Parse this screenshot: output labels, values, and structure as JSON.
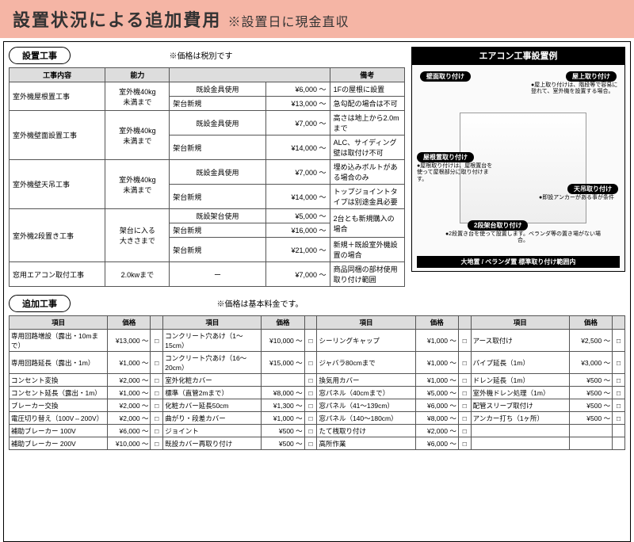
{
  "banner": {
    "title": "設置状況による追加費用",
    "sub": "※設置日に現金直収"
  },
  "section1": {
    "label": "設置工事",
    "note": "※価格は税別です"
  },
  "table1": {
    "headers": [
      "工事内容",
      "能力",
      "",
      "",
      "備考"
    ],
    "rows": [
      {
        "name": "室外機屋根置工事",
        "cap": "室外機40kg\n未満まで",
        "a": "既設金具使用",
        "p1": "¥6,000 ～",
        "r1": "1Fの屋根に設置",
        "b": "架台新規",
        "p2": "¥13,000 ～",
        "r2": "急勾配の場合は不可"
      },
      {
        "name": "室外機壁面設置工事",
        "cap": "室外機40kg\n未満まで",
        "a": "既設金具使用",
        "p1": "¥7,000 ～",
        "r1": "高さは地上から2.0mまで",
        "b": "架台新規",
        "p2": "¥14,000 ～",
        "r2": "ALC、サイディング壁は取付け不可"
      },
      {
        "name": "室外機壁天吊工事",
        "cap": "室外機40kg\n未満まで",
        "a": "既設金具使用",
        "p1": "¥7,000 ～",
        "r1": "埋め込みボルトがある場合のみ",
        "b": "架台新規",
        "p2": "¥14,000 ～",
        "r2": "トップジョイントタイプは別途金具必要"
      },
      {
        "name": "室外機2段置き工事",
        "cap": "架台に入る\n大きさまで",
        "a": "既設架台使用",
        "p1": "¥5,000 ～",
        "r1": "2台とも新規購入の場合",
        "b": "架台新規",
        "p2": "¥16,000 ～",
        "r2": "",
        "c": "架台新規",
        "p3": "¥21,000 ～",
        "r3": "新規＋既設室外機設置の場合"
      },
      {
        "name": "窓用エアコン取付工事",
        "cap": "2.0kwまで",
        "a": "ー",
        "p1": "¥7,000 ～",
        "r1": "商品同梱の部材使用取り付け範囲"
      }
    ]
  },
  "example": {
    "header": "エアコン工事設置例",
    "labels": {
      "wall": "壁面取り付け",
      "roof_top": "屋上取り付け",
      "roof": "屋根置取り付け",
      "ceiling": "天吊取り付け",
      "two_stage": "2段架台取り付け",
      "ground": "大地置 / ベランダ置 標準取り付け範囲内"
    },
    "notes": {
      "roof_top": "●屋上取り付けは、階段等で容易に登れて、室外機を設置する場合。",
      "roof": "●屋根取り付けは、屋根置台を使って屋根部分に取り付けます。",
      "ceiling": "●即設アンカーがある事が条件",
      "two_stage": "●2段置き台を使って設置します。ベランダ等の置き場がない場合。"
    }
  },
  "section2": {
    "label": "追加工事",
    "note": "※価格は基本料金です。"
  },
  "table2": {
    "headers": [
      "項目",
      "価格",
      "",
      "項目",
      "価格",
      "",
      "項目",
      "価格",
      "",
      "項目",
      "価格",
      ""
    ],
    "rows": [
      [
        "専用回路増設（露出・10mまで）",
        "¥13,000 ～",
        "コンクリート穴あけ（1～15cm）",
        "¥10,000 ～",
        "シーリングキャップ",
        "¥1,000 ～",
        "アース取付け",
        "¥2,500 ～"
      ],
      [
        "専用回路延長（露出・1m）",
        "¥1,000 ～",
        "コンクリート穴あけ（16～20cm）",
        "¥15,000 ～",
        "ジャバラ80cmまで",
        "¥1,000 ～",
        "パイプ延長（1m）",
        "¥3,000 ～"
      ],
      [
        "コンセント変換",
        "¥2,000 ～",
        "室外化粧カバー",
        "",
        "換気用カバー",
        "¥1,000 ～",
        "ドレン延長（1m）",
        "¥500 ～"
      ],
      [
        "コンセント延長（露出・1m）",
        "¥1,000 ～",
        "標準（直管2mまで）",
        "¥8,000 ～",
        "窓パネル（40cmまで）",
        "¥5,000 ～",
        "室外機ドレン処理（1m）",
        "¥500 ～"
      ],
      [
        "ブレーカー交換",
        "¥2,000 ～",
        "化粧カバー延長50cm",
        "¥1,300 ～",
        "窓パネル（41～139cm）",
        "¥6,000 ～",
        "配管スリーブ取付け",
        "¥500 ～"
      ],
      [
        "電圧切り替え（100V⇔200V）",
        "¥2,000 ～",
        "曲がり・段差カバー",
        "¥1,000 ～",
        "窓パネル（140～180cm）",
        "¥8,000 ～",
        "アンカー打ち（1ヶ所）",
        "¥500 ～"
      ],
      [
        "補助ブレーカー 100V",
        "¥6,000 ～",
        "ジョイント",
        "¥500 ～",
        "たて桟取り付け",
        "¥2,000 ～",
        "",
        "",
        ""
      ],
      [
        "補助ブレーカー 200V",
        "¥10,000 ～",
        "既設カバー再取り付け",
        "¥500 ～",
        "高所作業",
        "¥6,000 ～",
        "",
        "",
        ""
      ]
    ]
  }
}
